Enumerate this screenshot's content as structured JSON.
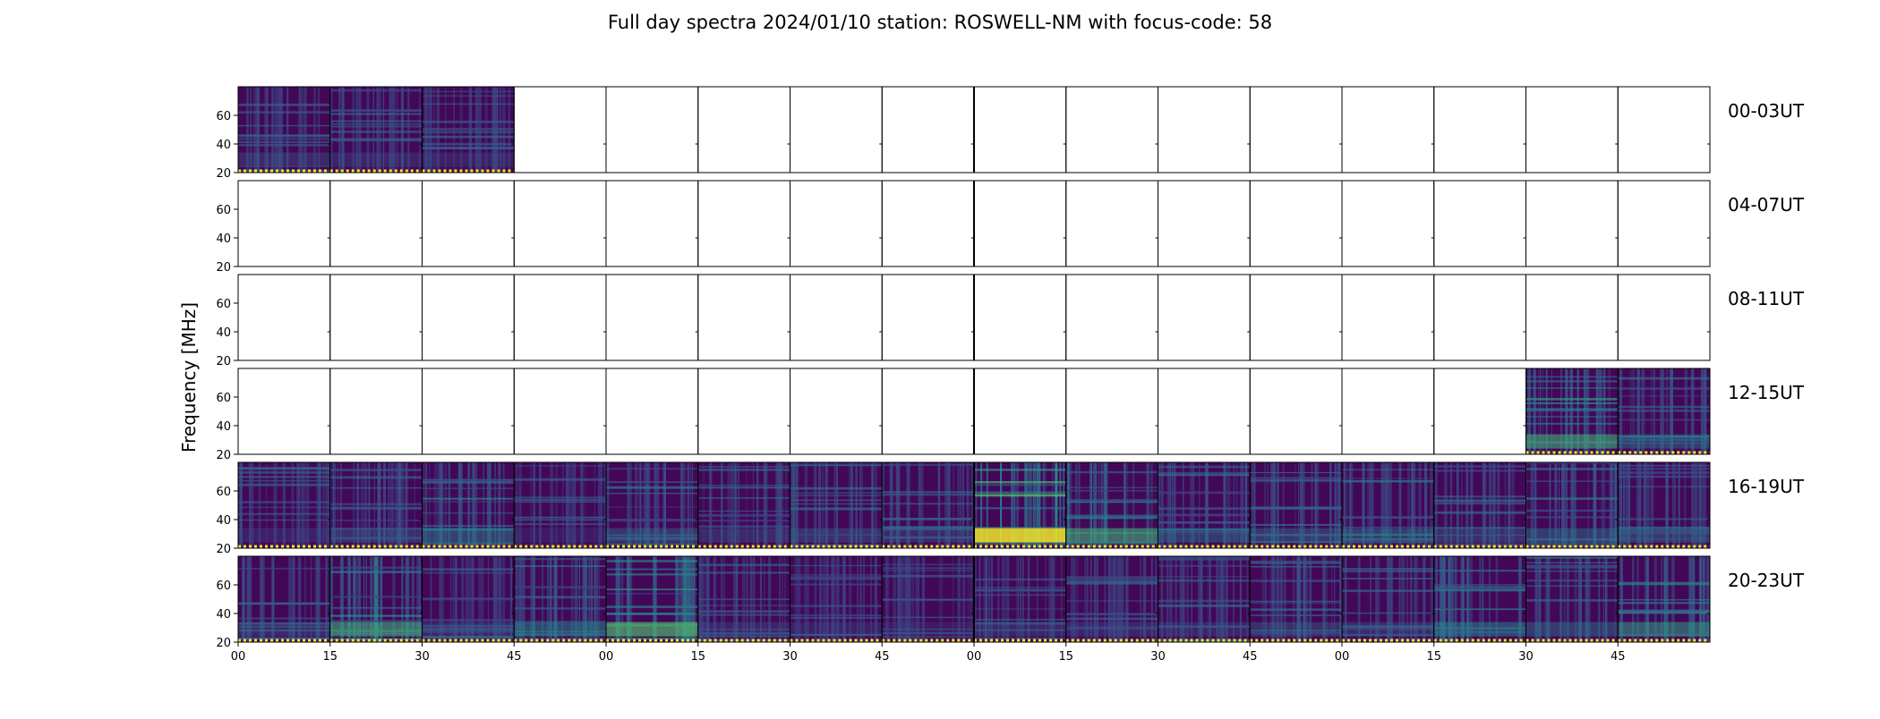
{
  "chart_data": {
    "type": "heatmap",
    "title": "Full day spectra 2024/01/10 station: ROSWELL-NM with focus-code: 58",
    "ylabel": "Frequency [MHz]",
    "ylim": [
      20,
      80
    ],
    "yticks": [
      "20",
      "40",
      "60"
    ],
    "xticks": [
      "00",
      "15",
      "30",
      "45",
      "00",
      "15",
      "30",
      "45",
      "00",
      "15",
      "30",
      "45",
      "00",
      "15",
      "30",
      "45"
    ],
    "colormap": [
      "#440154",
      "#3b528b",
      "#21918c",
      "#5ec962",
      "#fde725"
    ],
    "rows": [
      {
        "label": "00-03UT",
        "panels": [
          1,
          1,
          1,
          0,
          0,
          0,
          0,
          0,
          0,
          0,
          0,
          0,
          0,
          0,
          0,
          0
        ],
        "intensity": [
          0.22,
          0.2,
          0.18,
          0,
          0,
          0,
          0,
          0,
          0,
          0,
          0,
          0,
          0,
          0,
          0,
          0
        ]
      },
      {
        "label": "04-07UT",
        "panels": [
          0,
          0,
          0,
          0,
          0,
          0,
          0,
          0,
          0,
          0,
          0,
          0,
          0,
          0,
          0,
          0
        ],
        "intensity": [
          0,
          0,
          0,
          0,
          0,
          0,
          0,
          0,
          0,
          0,
          0,
          0,
          0,
          0,
          0,
          0
        ]
      },
      {
        "label": "08-11UT",
        "panels": [
          0,
          0,
          0,
          0,
          0,
          0,
          0,
          0,
          0,
          0,
          0,
          0,
          0,
          0,
          0,
          0
        ],
        "intensity": [
          0,
          0,
          0,
          0,
          0,
          0,
          0,
          0,
          0,
          0,
          0,
          0,
          0,
          0,
          0,
          0
        ]
      },
      {
        "label": "12-15UT",
        "panels": [
          0,
          0,
          0,
          0,
          0,
          0,
          0,
          0,
          0,
          0,
          0,
          0,
          0,
          0,
          1,
          1
        ],
        "intensity": [
          0,
          0,
          0,
          0,
          0,
          0,
          0,
          0,
          0,
          0,
          0,
          0,
          0,
          0,
          0.45,
          0.3
        ]
      },
      {
        "label": "16-19UT",
        "panels": [
          1,
          1,
          1,
          1,
          1,
          1,
          1,
          1,
          1,
          1,
          1,
          1,
          1,
          1,
          1,
          1
        ],
        "intensity": [
          0.18,
          0.25,
          0.32,
          0.15,
          0.28,
          0.22,
          0.25,
          0.22,
          0.7,
          0.45,
          0.3,
          0.28,
          0.3,
          0.25,
          0.3,
          0.28
        ]
      },
      {
        "label": "20-23UT",
        "panels": [
          1,
          1,
          1,
          1,
          1,
          1,
          1,
          1,
          1,
          1,
          1,
          1,
          1,
          1,
          1,
          1
        ],
        "intensity": [
          0.22,
          0.45,
          0.2,
          0.35,
          0.5,
          0.2,
          0.18,
          0.15,
          0.2,
          0.2,
          0.2,
          0.25,
          0.22,
          0.35,
          0.3,
          0.4
        ]
      }
    ]
  }
}
